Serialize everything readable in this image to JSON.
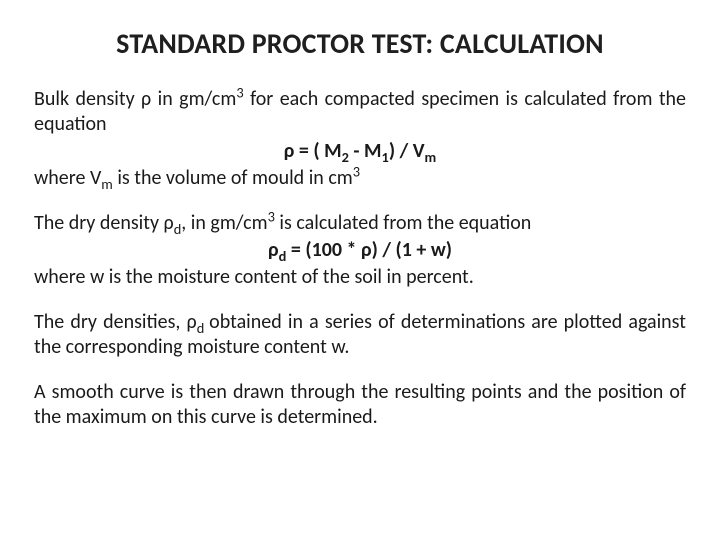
{
  "title": {
    "text": "STANDARD PROCTOR TEST: CALCULATION",
    "color": "#1f1f1f",
    "fontsize": 28,
    "fontweight": 700,
    "align": "center",
    "small_caps_style": true
  },
  "body_color": "#1a1a1a",
  "background_color": "#ffffff",
  "body_fontsize": 20,
  "p1": {
    "line1_before": "Bulk  density  ρ  in  gm/cm",
    "line1_sup": "3",
    "line1_after": "  for  each  compacted  specimen  is calculated from the equation",
    "formula_left": "ρ = ( M",
    "formula_s1_sub": "2",
    "formula_mid": " -  M",
    "formula_s2_sub": "1",
    "formula_right_before_vm": ") / V",
    "formula_vm_sub": "m",
    "line3_before": "where V",
    "line3_vm_sub": "m",
    "line3_mid": " is the volume of mould in cm",
    "line3_sup": "3"
  },
  "p2": {
    "line1_before": "The dry density ρ",
    "line1_d_sub": "d",
    "line1_mid": ", in gm/cm",
    "line1_sup": "3",
    "line1_after": " is calculated from the equation",
    "formula_left": "ρ",
    "formula_d_sub": "d",
    "formula_right": " = (100 * ρ) / (1 + w)",
    "line3": "where w is the moisture content of the soil in percent."
  },
  "p3": {
    "before": "The  dry  densities,  ρ",
    "d_sub": "d ",
    "after": "obtained  in  a  series  of  determinations  are plotted against the corresponding moisture content w."
  },
  "p4": "A smooth curve is then drawn through the resulting points and the position of the maximum on this curve is determined."
}
